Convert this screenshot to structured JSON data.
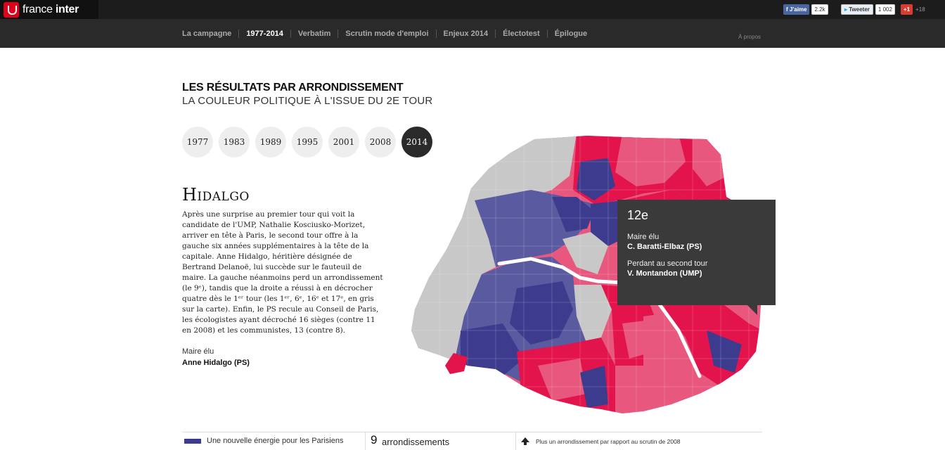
{
  "header": {
    "brand_part1": "france ",
    "brand_part2": "inter",
    "facebook": {
      "label": "J'aime",
      "count": "2.2k"
    },
    "twitter": {
      "label": "Tweeter",
      "count": "1 002"
    },
    "gplus": {
      "label": "+1",
      "count": "+18"
    }
  },
  "nav": {
    "items": [
      {
        "label": "La campagne"
      },
      {
        "label": "1977-2014",
        "active": true
      },
      {
        "label": "Verbatim"
      },
      {
        "label": "Scrutin mode d'emploi"
      },
      {
        "label": "Enjeux 2014"
      },
      {
        "label": "Électotest"
      },
      {
        "label": "Épilogue"
      }
    ],
    "apropos": "À propos"
  },
  "main": {
    "title": "LES RÉSULTATS PAR ARRONDISSEMENT",
    "subtitle": "LA COULEUR POLITIQUE À L'ISSUE DU 2E TOUR",
    "years": [
      "1977",
      "1983",
      "1989",
      "1995",
      "2001",
      "2008",
      "2014"
    ],
    "active_year": "2014",
    "mayor_name": "Hidalgo",
    "description": "Après une surprise au premier tour qui voit la candidate de l'UMP, Nathalie Kosciusko-Morizet, arriver en tête à Paris, le second tour offre à la gauche six années supplémentaires à la tête de la capitale. Anne Hidalgo, héritière désignée de Bertrand Delanoë, lui succède sur le fauteuil de maire. La gauche néanmoins perd un arrondissement (le 9ᵉ), tandis que la droite a réussi à en décrocher quatre dès le 1ᵉʳ tour (les 1ᵉʳ, 6ᵉ, 16ᵉ et 17ᵉ, en gris sur la carte). Enfin, le PS recule au Conseil de Paris, les écologistes ayant décroché 16 sièges (contre 11 en 2008) et les communistes, 13 (contre 8).",
    "elu_label": "Maire élu",
    "elu_name": "Anne Hidalgo (PS)"
  },
  "tooltip": {
    "arrondissement": "12e",
    "elu_label": "Maire élu",
    "elu_name": "C. Baratti-Elbaz (PS)",
    "perdant_label": "Perdant au second tour",
    "perdant_name": "V. Montandon (UMP)"
  },
  "colors": {
    "left_red": "#e3134b",
    "left_pink": "#e8587e",
    "right_blue": "#3d3b8e",
    "right_lightblue": "#5a5aa0",
    "gray": "#c8c8c8",
    "nav_bg": "#2a2a2a",
    "topbar_bg": "#1c1c1c"
  },
  "footer": {
    "legend_label": "Une nouvelle énergie pour les Parisiens",
    "count_value": "9",
    "count_label": "arrondissements",
    "note": "Plus un arrondissement par rapport au scrutin de 2008"
  }
}
